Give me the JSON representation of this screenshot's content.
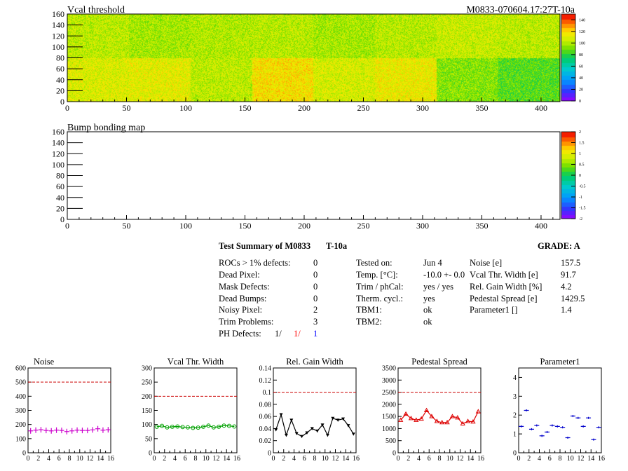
{
  "maps": [
    {
      "title": "Vcal threshold",
      "module_label": "M0833-070604.17:27T-10a",
      "x_ticks": [
        0,
        50,
        100,
        150,
        200,
        250,
        300,
        350,
        400
      ],
      "y_ticks": [
        0,
        20,
        40,
        60,
        80,
        100,
        120,
        140,
        160
      ],
      "xlim": [
        0,
        416
      ],
      "ylim": [
        0,
        160
      ],
      "colorbar_ticks": [
        "0",
        "20",
        "40",
        "60",
        "80",
        "100",
        "120",
        "140"
      ],
      "colorbar_range": [
        0,
        150
      ]
    },
    {
      "title": "Bump bonding map",
      "x_ticks": [
        0,
        50,
        100,
        150,
        200,
        250,
        300,
        350,
        400
      ],
      "y_ticks": [
        0,
        20,
        40,
        60,
        80,
        100,
        120,
        140,
        160
      ],
      "xlim": [
        0,
        416
      ],
      "ylim": [
        0,
        160
      ],
      "colorbar_ticks": [
        "-2",
        "-1.5",
        "-1",
        "-0.5",
        "0",
        "0.5",
        "1",
        "1.5",
        "2"
      ],
      "colorbar_range": [
        -2,
        2
      ]
    }
  ],
  "summary": {
    "title": "Test Summary of M0833",
    "subtitle": "T-10a",
    "grade": "GRADE:  A",
    "defects": [
      {
        "label": "ROCs > 1% defects:",
        "value": "0"
      },
      {
        "label": "Dead Pixel:",
        "value": "0"
      },
      {
        "label": "Mask Defects:",
        "value": "0"
      },
      {
        "label": "Dead Bumps:",
        "value": "0"
      },
      {
        "label": "Noisy Pixel:",
        "value": "2"
      },
      {
        "label": "Trim Problems:",
        "value": "3"
      }
    ],
    "ph_defects": {
      "label": "PH Defects:",
      "v1": "1/",
      "v2": "1/",
      "v3": "1",
      "v2_color": "#ff0000",
      "v3_color": "#0000ff"
    },
    "conditions": [
      {
        "label": "Tested on:",
        "value": "Jun 4"
      },
      {
        "label": "Temp. [°C]:",
        "value": "-10.0 +- 0.0"
      },
      {
        "label": "Trim / phCal:",
        "value": "yes / yes"
      },
      {
        "label": "Therm. cycl.:",
        "value": "yes"
      },
      {
        "label": "TBM1:",
        "value": "ok"
      },
      {
        "label": "TBM2:",
        "value": "ok"
      }
    ],
    "results": [
      {
        "label": "Noise [e]",
        "value": "157.5"
      },
      {
        "label": "Vcal Thr. Width [e]",
        "value": "91.7"
      },
      {
        "label": "Rel. Gain Width [%]",
        "value": "4.2"
      },
      {
        "label": "Pedestal Spread [e]",
        "value": "1429.5"
      },
      {
        "label": "Parameter1 []",
        "value": "1.4"
      }
    ]
  },
  "chart_data": [
    {
      "type": "heatmap",
      "title": "Vcal threshold",
      "xlim": [
        0,
        416
      ],
      "ylim": [
        0,
        160
      ],
      "z_range": [
        0,
        150
      ],
      "roc_blocks_upper_row": [
        104,
        100,
        102,
        103,
        100,
        103,
        106,
        104
      ],
      "roc_blocks_lower_row": [
        110,
        112,
        104,
        118,
        109,
        114,
        95,
        88
      ]
    },
    {
      "type": "heatmap",
      "title": "Bump bonding map",
      "xlim": [
        0,
        416
      ],
      "ylim": [
        0,
        160
      ],
      "z_range": [
        -2,
        2
      ],
      "values": []
    },
    {
      "type": "scatter",
      "title": "Noise",
      "x": [
        0,
        1,
        2,
        3,
        4,
        5,
        6,
        7,
        8,
        9,
        10,
        11,
        12,
        13,
        14,
        15
      ],
      "values": [
        155,
        160,
        163,
        158,
        155,
        160,
        158,
        150,
        155,
        160,
        158,
        158,
        162,
        170,
        160,
        163
      ],
      "ylim": [
        0,
        600
      ],
      "xlim": [
        0,
        16
      ],
      "y_ticks": [
        0,
        100,
        200,
        300,
        400,
        500,
        600
      ],
      "threshold": 500,
      "style": "crosses",
      "color": "#cc00cc"
    },
    {
      "type": "line",
      "title": "Vcal Thr. Width",
      "x": [
        0,
        1,
        2,
        3,
        4,
        5,
        6,
        7,
        8,
        9,
        10,
        11,
        12,
        13,
        14,
        15
      ],
      "values": [
        92,
        95,
        90,
        92,
        93,
        91,
        90,
        88,
        89,
        92,
        96,
        90,
        92,
        96,
        95,
        93
      ],
      "ylim": [
        0,
        300
      ],
      "xlim": [
        0,
        16
      ],
      "y_ticks": [
        0,
        50,
        100,
        150,
        200,
        250,
        300
      ],
      "threshold": 200,
      "style": "circles",
      "color": "#00a000"
    },
    {
      "type": "line",
      "title": "Rel. Gain Width",
      "x": [
        0,
        1,
        2,
        3,
        4,
        5,
        6,
        7,
        8,
        9,
        10,
        11,
        12,
        13,
        14,
        15
      ],
      "values": [
        0.038,
        0.063,
        0.029,
        0.054,
        0.032,
        0.027,
        0.033,
        0.04,
        0.036,
        0.046,
        0.029,
        0.057,
        0.054,
        0.056,
        0.045,
        0.031
      ],
      "ylim": [
        0,
        0.14
      ],
      "xlim": [
        0,
        16
      ],
      "y_ticks": [
        0,
        0.02,
        0.04,
        0.06,
        0.08,
        0.1,
        0.12,
        0.14
      ],
      "threshold": 0.1,
      "style": "triangles-down",
      "color": "#000000"
    },
    {
      "type": "line",
      "title": "Pedestal Spread",
      "x": [
        0,
        1,
        2,
        3,
        4,
        5,
        6,
        7,
        8,
        9,
        10,
        11,
        12,
        13,
        14,
        15
      ],
      "values": [
        1350,
        1600,
        1420,
        1350,
        1400,
        1750,
        1500,
        1300,
        1250,
        1250,
        1500,
        1450,
        1200,
        1300,
        1280,
        1700
      ],
      "ylim": [
        0,
        3500
      ],
      "xlim": [
        0,
        16
      ],
      "y_ticks": [
        0,
        500,
        1000,
        1500,
        2000,
        2500,
        3000,
        3500
      ],
      "threshold": 2500,
      "style": "triangles-up",
      "color": "#dd0000"
    },
    {
      "type": "scatter",
      "title": "Parameter1",
      "x": [
        0,
        1,
        2,
        3,
        4,
        5,
        6,
        7,
        8,
        9,
        10,
        11,
        12,
        13,
        14,
        15
      ],
      "values": [
        1.4,
        2.25,
        1.25,
        1.45,
        0.9,
        1.1,
        1.45,
        1.4,
        1.35,
        0.8,
        1.95,
        1.85,
        1.4,
        1.85,
        0.7,
        1.35
      ],
      "ylim": [
        0,
        4.5
      ],
      "xlim": [
        0,
        16
      ],
      "y_ticks": [
        0,
        1,
        2,
        3,
        4
      ],
      "style": "crosses",
      "color": "#0000cc"
    }
  ]
}
